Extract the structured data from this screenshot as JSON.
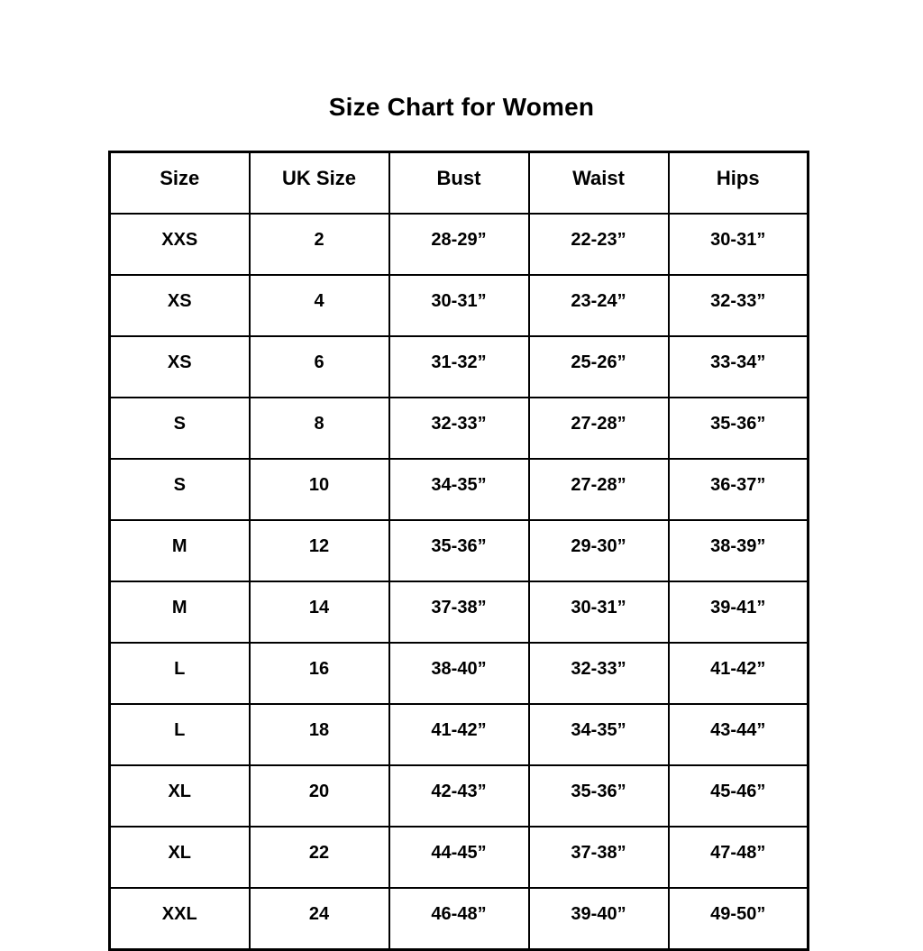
{
  "title": "Size Chart for Women",
  "chart_data": {
    "type": "table",
    "title": "Size Chart for Women",
    "columns": [
      "Size",
      "UK Size",
      "Bust",
      "Waist",
      "Hips"
    ],
    "rows": [
      [
        "XXS",
        "2",
        "28-29”",
        "22-23”",
        "30-31”"
      ],
      [
        "XS",
        "4",
        "30-31”",
        "23-24”",
        "32-33”"
      ],
      [
        "XS",
        "6",
        "31-32”",
        "25-26”",
        "33-34”"
      ],
      [
        "S",
        "8",
        "32-33”",
        "27-28”",
        "35-36”"
      ],
      [
        "S",
        "10",
        "34-35”",
        "27-28”",
        "36-37”"
      ],
      [
        "M",
        "12",
        "35-36”",
        "29-30”",
        "38-39”"
      ],
      [
        "M",
        "14",
        "37-38”",
        "30-31”",
        "39-41”"
      ],
      [
        "L",
        "16",
        "38-40”",
        "32-33”",
        "41-42”"
      ],
      [
        "L",
        "18",
        "41-42”",
        "34-35”",
        "43-44”"
      ],
      [
        "XL",
        "20",
        "42-43”",
        "35-36”",
        "45-46”"
      ],
      [
        "XL",
        "22",
        "44-45”",
        "37-38”",
        "47-48”"
      ],
      [
        "XXL",
        "24",
        "46-48”",
        "39-40”",
        "49-50”"
      ]
    ],
    "layout": {
      "grid": true,
      "border_color": "#000000",
      "text_color": "#000000",
      "background": "#ffffff"
    }
  }
}
